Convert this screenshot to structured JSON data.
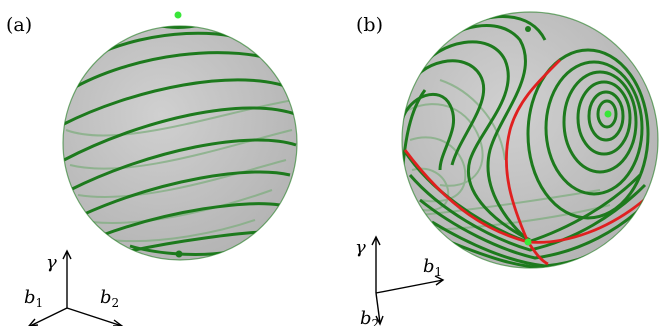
{
  "panels": [
    {
      "label": "(a)",
      "axes": {
        "up": "γ",
        "left": "b",
        "left_sub": "1",
        "right": "b",
        "right_sub": "2"
      }
    },
    {
      "label": "(b)",
      "axes": {
        "up": "γ",
        "right": "b",
        "right_sub": "1",
        "down": "b",
        "down_sub": "2"
      }
    }
  ],
  "colors": {
    "sphere": "#c4c4c4",
    "trajectory": "#1d7a1d",
    "trajectory_back": "#7fae7f",
    "fixed_point": "#39e639",
    "separatrix": "#e02020"
  }
}
